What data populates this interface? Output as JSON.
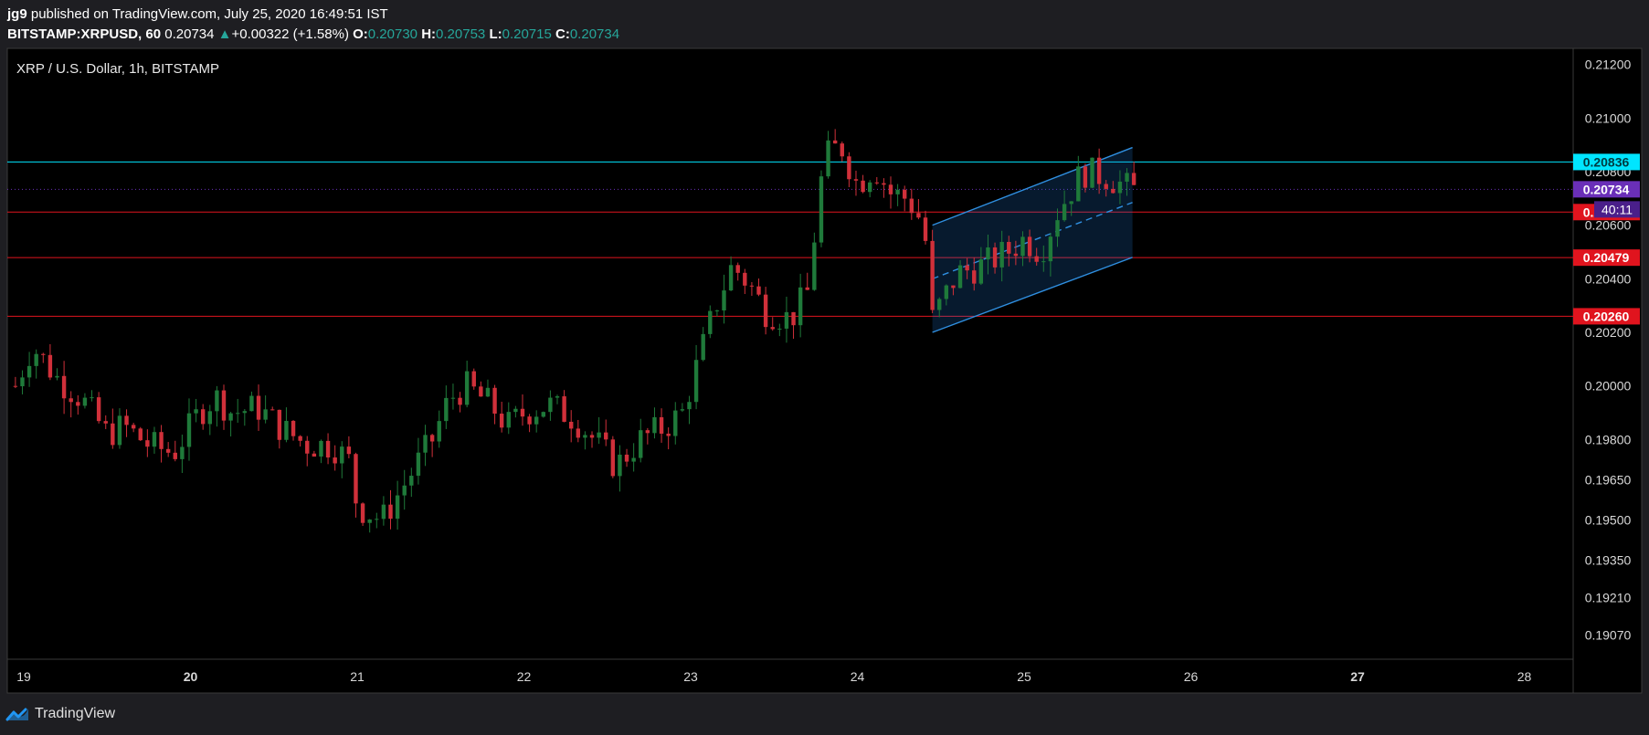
{
  "header": {
    "author": "jg9",
    "published": " published on TradingView.com, July 25, 2020 16:49:51 IST"
  },
  "ticker": {
    "symbol": "BITSTAMP:XRPUSD, 60",
    "last": "0.20734",
    "arrow": "▲",
    "change": "+0.00322 (+1.58%)",
    "o_label": "O:",
    "o_value": "0.20730",
    "h_label": "H:",
    "h_value": "0.20753",
    "l_label": "L:",
    "l_value": "0.20715",
    "c_label": "C:",
    "c_value": "0.20734"
  },
  "footer": {
    "brand": "TradingView"
  },
  "colors": {
    "up": "#26a69a",
    "up_candle": "#1f7a3a",
    "down_candle": "#d0303a",
    "resistance": "#00e5ff",
    "support": "#e0141e",
    "current": "#6a2fb8",
    "channel": "#2f8fe0"
  },
  "chart_data": {
    "type": "candlestick",
    "title": "XRP / U.S. Dollar, 1h, BITSTAMP",
    "ylim": [
      0.1898,
      0.2126
    ],
    "y_ticks": [
      "0.21200",
      "0.21000",
      "0.20800",
      "0.20600",
      "0.20400",
      "0.20200",
      "0.20000",
      "0.19800",
      "0.19650",
      "0.19500",
      "0.19350",
      "0.19210",
      "0.19070"
    ],
    "x_ticks": [
      "19",
      "20",
      "21",
      "22",
      "23",
      "24",
      "25",
      "26",
      "27",
      "28"
    ],
    "horizontal_lines": [
      {
        "label": "0.20836",
        "value": 0.20836,
        "role": "resistance"
      },
      {
        "label": "0.20649",
        "value": 0.20649,
        "role": "support"
      },
      {
        "label": "0.20479",
        "value": 0.20479,
        "role": "support"
      },
      {
        "label": "0.20260",
        "value": 0.2026,
        "role": "support"
      }
    ],
    "current_price": {
      "label": "0.20734",
      "value": 0.20734,
      "countdown": "40:11"
    },
    "channel": {
      "start_day": 24.45,
      "end_day": 25.65,
      "lower_start": 0.202,
      "lower_end": 0.2048,
      "upper_start": 0.206,
      "upper_end": 0.2089
    },
    "days_start": 18.95,
    "days_end": 25.65,
    "anchors": [
      [
        18.95,
        0.2
      ],
      [
        19.05,
        0.2015
      ],
      [
        19.2,
        0.2003
      ],
      [
        19.35,
        0.1995
      ],
      [
        19.5,
        0.1982
      ],
      [
        19.6,
        0.1985
      ],
      [
        19.75,
        0.1978
      ],
      [
        19.9,
        0.1975
      ],
      [
        20.05,
        0.199
      ],
      [
        20.15,
        0.1996
      ],
      [
        20.25,
        0.199
      ],
      [
        20.4,
        0.1992
      ],
      [
        20.55,
        0.1984
      ],
      [
        20.7,
        0.1978
      ],
      [
        20.85,
        0.1978
      ],
      [
        20.95,
        0.1972
      ],
      [
        21.0,
        0.1955
      ],
      [
        21.15,
        0.195
      ],
      [
        21.3,
        0.1965
      ],
      [
        21.45,
        0.198
      ],
      [
        21.55,
        0.1995
      ],
      [
        21.65,
        0.2
      ],
      [
        21.8,
        0.1993
      ],
      [
        21.9,
        0.1985
      ],
      [
        22.0,
        0.199
      ],
      [
        22.15,
        0.1993
      ],
      [
        22.3,
        0.1988
      ],
      [
        22.45,
        0.1978
      ],
      [
        22.55,
        0.197
      ],
      [
        22.7,
        0.198
      ],
      [
        22.85,
        0.1985
      ],
      [
        22.95,
        0.199
      ],
      [
        23.05,
        0.201
      ],
      [
        23.15,
        0.203
      ],
      [
        23.25,
        0.2045
      ],
      [
        23.35,
        0.2038
      ],
      [
        23.45,
        0.2028
      ],
      [
        23.6,
        0.2025
      ],
      [
        23.7,
        0.2035
      ],
      [
        23.8,
        0.2085
      ],
      [
        23.9,
        0.209
      ],
      [
        24.0,
        0.2075
      ],
      [
        24.1,
        0.2082
      ],
      [
        24.2,
        0.2072
      ],
      [
        24.3,
        0.207
      ],
      [
        24.4,
        0.206
      ],
      [
        24.45,
        0.2025
      ],
      [
        24.6,
        0.2042
      ],
      [
        24.75,
        0.2045
      ],
      [
        24.9,
        0.205
      ],
      [
        25.0,
        0.2055
      ],
      [
        25.1,
        0.205
      ],
      [
        25.2,
        0.2065
      ],
      [
        25.35,
        0.208
      ],
      [
        25.5,
        0.2078
      ],
      [
        25.65,
        0.2073
      ]
    ]
  }
}
